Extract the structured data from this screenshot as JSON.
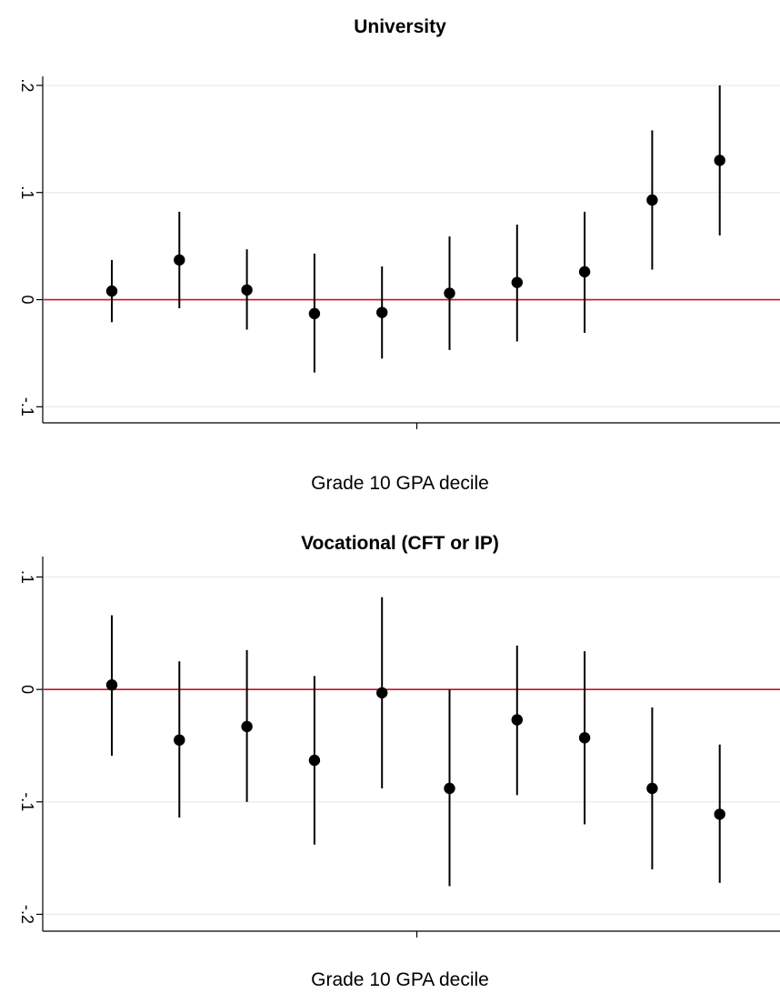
{
  "chart_data": [
    {
      "type": "scatter",
      "title": "University",
      "xlabel": "Grade 10 GPA decile",
      "ylabel": "",
      "ylim": [
        -0.115,
        0.205
      ],
      "yticks": [
        -0.1,
        0,
        0.1,
        0.2
      ],
      "ytick_labels": [
        "-.1",
        "0",
        ".1",
        ".2"
      ],
      "reference_line": 0,
      "reference_color": "#c8102e",
      "grid": true,
      "x": [
        1,
        2,
        3,
        4,
        5,
        6,
        7,
        8,
        9,
        10
      ],
      "points": [
        {
          "x": 1,
          "y": 0.008,
          "lo": -0.021,
          "hi": 0.037
        },
        {
          "x": 2,
          "y": 0.037,
          "lo": -0.008,
          "hi": 0.082
        },
        {
          "x": 3,
          "y": 0.009,
          "lo": -0.028,
          "hi": 0.047
        },
        {
          "x": 4,
          "y": -0.013,
          "lo": -0.068,
          "hi": 0.043
        },
        {
          "x": 5,
          "y": -0.012,
          "lo": -0.055,
          "hi": 0.031
        },
        {
          "x": 6,
          "y": 0.006,
          "lo": -0.047,
          "hi": 0.059
        },
        {
          "x": 7,
          "y": 0.016,
          "lo": -0.039,
          "hi": 0.07
        },
        {
          "x": 8,
          "y": 0.026,
          "lo": -0.031,
          "hi": 0.082
        },
        {
          "x": 9,
          "y": 0.093,
          "lo": 0.028,
          "hi": 0.158
        },
        {
          "x": 10,
          "y": 0.13,
          "lo": 0.06,
          "hi": 0.2
        }
      ]
    },
    {
      "type": "scatter",
      "title": "Vocational (CFT or IP)",
      "xlabel": "Grade 10 GPA decile",
      "ylabel": "",
      "ylim": [
        -0.215,
        0.115
      ],
      "yticks": [
        -0.2,
        -0.1,
        0,
        0.1
      ],
      "ytick_labels": [
        "-.2",
        "-.1",
        "0",
        ".1"
      ],
      "reference_line": 0,
      "reference_color": "#c8102e",
      "grid": true,
      "x": [
        1,
        2,
        3,
        4,
        5,
        6,
        7,
        8,
        9,
        10
      ],
      "points": [
        {
          "x": 1,
          "y": 0.004,
          "lo": -0.059,
          "hi": 0.066
        },
        {
          "x": 2,
          "y": -0.045,
          "lo": -0.114,
          "hi": 0.025
        },
        {
          "x": 3,
          "y": -0.033,
          "lo": -0.1,
          "hi": 0.035
        },
        {
          "x": 4,
          "y": -0.063,
          "lo": -0.138,
          "hi": 0.012
        },
        {
          "x": 5,
          "y": -0.003,
          "lo": -0.088,
          "hi": 0.082
        },
        {
          "x": 6,
          "y": -0.088,
          "lo": -0.175,
          "hi": 0.0
        },
        {
          "x": 7,
          "y": -0.027,
          "lo": -0.094,
          "hi": 0.039
        },
        {
          "x": 8,
          "y": -0.043,
          "lo": -0.12,
          "hi": 0.034
        },
        {
          "x": 9,
          "y": -0.088,
          "lo": -0.16,
          "hi": -0.016
        },
        {
          "x": 10,
          "y": -0.111,
          "lo": -0.172,
          "hi": -0.049
        }
      ]
    }
  ]
}
